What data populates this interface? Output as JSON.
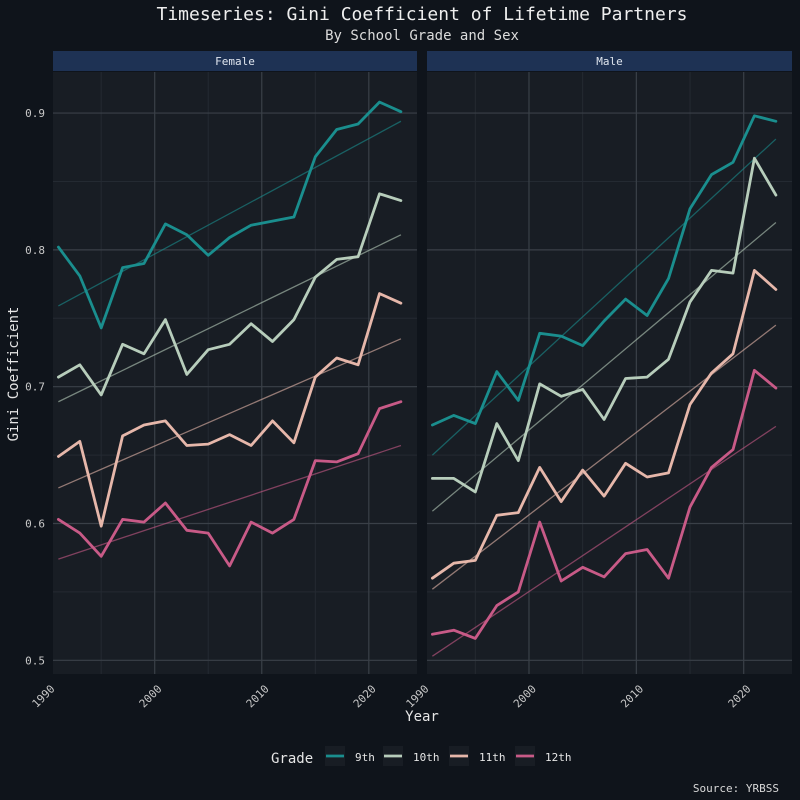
{
  "chart_data": {
    "type": "line",
    "title": "Timeseries: Gini Coefficient of Lifetime Partners",
    "subtitle": "By School Grade and Sex",
    "xlabel": "Year",
    "ylabel": "Gini Coefficient",
    "caption": "Source: YRBSS",
    "xlim": [
      1990.5,
      2024.5
    ],
    "ylim": [
      0.49,
      0.93
    ],
    "x_ticks": [
      1990,
      2000,
      2010,
      2020
    ],
    "x_tick_labels": [
      "1990",
      "2000",
      "2010",
      "2020"
    ],
    "y_ticks": [
      0.5,
      0.6,
      0.7,
      0.8,
      0.9
    ],
    "y_tick_labels": [
      "0.5",
      "0.6",
      "0.7",
      "0.8",
      "0.9"
    ],
    "grid": true,
    "trend_lines": true,
    "legend": {
      "title": "Grade",
      "position": "bottom",
      "items": [
        "9th",
        "10th",
        "11th",
        "12th"
      ]
    },
    "colors": {
      "9th": "#1a8e8e",
      "10th": "#b7cdbb",
      "11th": "#e6b7aa",
      "12th": "#c85a87"
    },
    "x": [
      1991,
      1993,
      1995,
      1997,
      1999,
      2001,
      2003,
      2005,
      2007,
      2009,
      2011,
      2013,
      2015,
      2017,
      2019,
      2021,
      2023
    ],
    "panels": [
      {
        "name": "Female",
        "series": [
          {
            "name": "9th",
            "values": [
              0.802,
              0.781,
              0.743,
              0.787,
              0.79,
              0.819,
              0.811,
              0.796,
              0.809,
              0.818,
              0.821,
              0.824,
              0.868,
              0.888,
              0.892,
              0.908,
              0.901
            ],
            "trend": [
              0.759,
              0.894
            ]
          },
          {
            "name": "10th",
            "values": [
              0.707,
              0.716,
              0.694,
              0.731,
              0.724,
              0.749,
              0.709,
              0.727,
              0.731,
              0.746,
              0.733,
              0.749,
              0.78,
              0.793,
              0.795,
              0.841,
              0.836
            ],
            "trend": [
              0.689,
              0.811
            ]
          },
          {
            "name": "11th",
            "values": [
              0.649,
              0.66,
              0.598,
              0.664,
              0.672,
              0.675,
              0.657,
              0.658,
              0.665,
              0.657,
              0.675,
              0.659,
              0.707,
              0.721,
              0.716,
              0.768,
              0.761
            ],
            "trend": [
              0.626,
              0.735
            ]
          },
          {
            "name": "12th",
            "values": [
              0.603,
              0.593,
              0.576,
              0.603,
              0.601,
              0.615,
              0.595,
              0.593,
              0.569,
              0.601,
              0.593,
              0.603,
              0.646,
              0.645,
              0.651,
              0.684,
              0.689
            ],
            "trend": [
              0.574,
              0.657
            ]
          }
        ]
      },
      {
        "name": "Male",
        "series": [
          {
            "name": "9th",
            "values": [
              0.672,
              0.679,
              0.673,
              0.711,
              0.69,
              0.739,
              0.737,
              0.73,
              0.748,
              0.764,
              0.752,
              0.779,
              0.83,
              0.855,
              0.864,
              0.898,
              0.894
            ],
            "trend": [
              0.65,
              0.881
            ]
          },
          {
            "name": "10th",
            "values": [
              0.633,
              0.633,
              0.623,
              0.673,
              0.646,
              0.702,
              0.693,
              0.698,
              0.676,
              0.706,
              0.707,
              0.72,
              0.762,
              0.785,
              0.783,
              0.867,
              0.84
            ],
            "trend": [
              0.609,
              0.82
            ]
          },
          {
            "name": "11th",
            "values": [
              0.56,
              0.571,
              0.573,
              0.606,
              0.608,
              0.641,
              0.616,
              0.639,
              0.62,
              0.644,
              0.634,
              0.637,
              0.687,
              0.71,
              0.724,
              0.785,
              0.771
            ],
            "trend": [
              0.552,
              0.745
            ]
          },
          {
            "name": "12th",
            "values": [
              0.519,
              0.522,
              0.516,
              0.54,
              0.55,
              0.601,
              0.558,
              0.568,
              0.561,
              0.578,
              0.581,
              0.56,
              0.612,
              0.641,
              0.654,
              0.712,
              0.699
            ],
            "trend": [
              0.503,
              0.671
            ]
          }
        ]
      }
    ]
  }
}
